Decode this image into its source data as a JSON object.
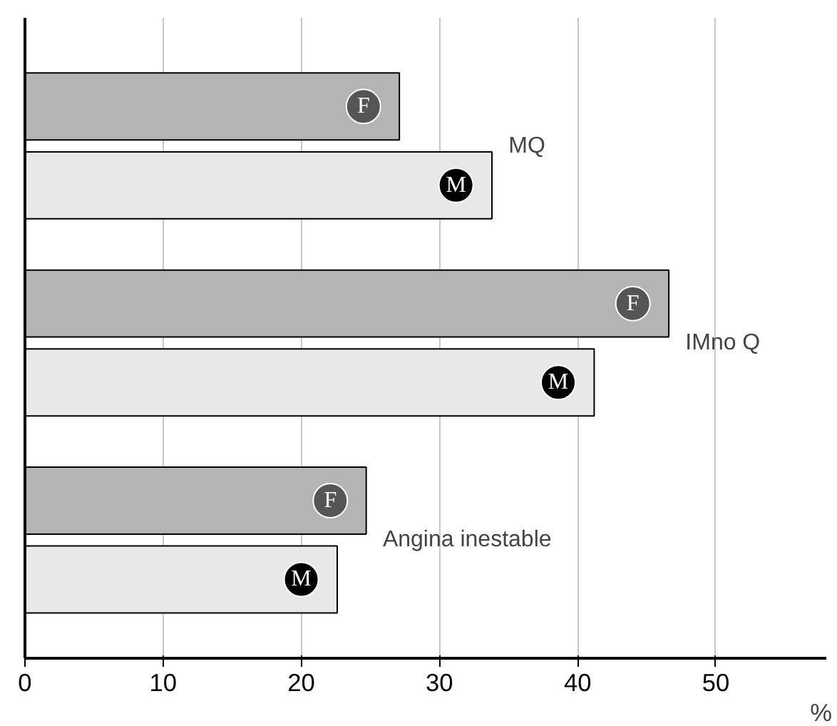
{
  "chart_data": {
    "type": "bar",
    "orientation": "horizontal",
    "categories": [
      "MQ",
      "IMno Q",
      "Angina inestable"
    ],
    "series": [
      {
        "name": "F",
        "color": "#b4b4b4",
        "values": [
          27.1,
          46.6,
          24.7
        ]
      },
      {
        "name": "M",
        "color": "#e8e8e8",
        "values": [
          33.8,
          41.2,
          22.6
        ]
      }
    ],
    "xlabel": "%",
    "xlim": [
      0,
      58
    ],
    "xticks": [
      0,
      10,
      20,
      30,
      40,
      50
    ],
    "grid": "x"
  }
}
